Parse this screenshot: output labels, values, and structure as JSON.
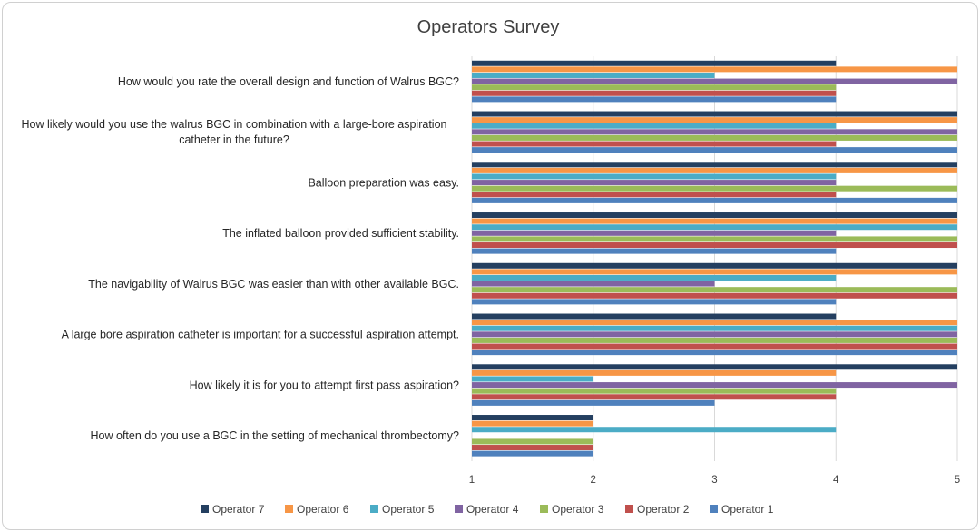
{
  "chart_data": {
    "type": "bar",
    "orientation": "horizontal",
    "title": "Operators Survey",
    "xlim": [
      1,
      5
    ],
    "x_ticks": [
      1,
      2,
      3,
      4,
      5
    ],
    "grid": "vertical",
    "legend_position": "bottom",
    "categories": [
      [
        "How would you rate the overall design and function of Walrus BGC?"
      ],
      [
        "How likely would you use the walrus BGC in combination with a large-bore aspiration",
        "catheter in the future?"
      ],
      [
        "Balloon preparation was easy."
      ],
      [
        "The inflated balloon provided sufficient stability."
      ],
      [
        "The navigability of Walrus BGC was easier than with other available BGC."
      ],
      [
        "A large bore aspiration catheter is important for a successful aspiration attempt."
      ],
      [
        "How likely it is for you to attempt first pass aspiration?"
      ],
      [
        "How often do you use a BGC in the setting of mechanical thrombectomy?"
      ]
    ],
    "series": [
      {
        "name": "Operator 7",
        "color": "#243f60",
        "values": [
          4,
          5,
          5,
          5,
          5,
          4,
          5,
          2
        ]
      },
      {
        "name": "Operator 6",
        "color": "#f79646",
        "values": [
          5,
          5,
          5,
          5,
          5,
          5,
          4,
          2
        ]
      },
      {
        "name": "Operator 5",
        "color": "#4bacc6",
        "values": [
          3,
          4,
          4,
          5,
          4,
          5,
          2,
          4
        ]
      },
      {
        "name": "Operator 4",
        "color": "#8064a2",
        "values": [
          5,
          5,
          4,
          4,
          3,
          5,
          5,
          1
        ]
      },
      {
        "name": "Operator 3",
        "color": "#9bbb59",
        "values": [
          4,
          5,
          5,
          5,
          5,
          5,
          4,
          2
        ]
      },
      {
        "name": "Operator 2",
        "color": "#c0504d",
        "values": [
          4,
          4,
          4,
          5,
          5,
          5,
          4,
          2
        ]
      },
      {
        "name": "Operator 1",
        "color": "#4f81bd",
        "values": [
          4,
          5,
          5,
          4,
          4,
          5,
          3,
          2
        ]
      }
    ]
  }
}
